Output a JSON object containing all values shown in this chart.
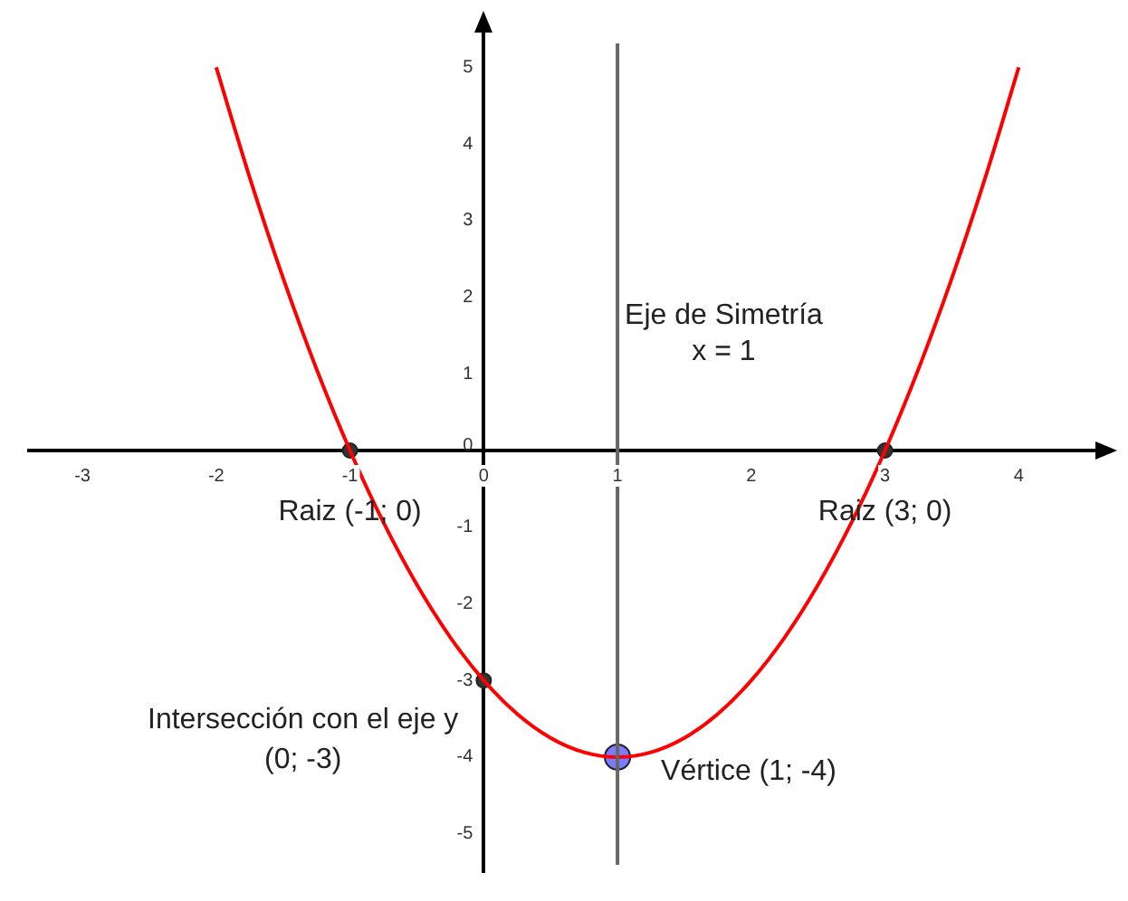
{
  "chart_data": {
    "type": "line",
    "xlim": [
      -3.4,
      4.6
    ],
    "ylim": [
      -5.5,
      5.5
    ],
    "xticks": [
      -3,
      -2,
      -1,
      0,
      1,
      2,
      3,
      4
    ],
    "yticks": [
      -5,
      -4,
      -3,
      -2,
      -1,
      0,
      1,
      2,
      3,
      4,
      5
    ],
    "legend": false,
    "marker": "none",
    "line_style": "solid",
    "series": [
      {
        "color": "#ff0000",
        "x": [
          -2,
          -1.75,
          -1.5,
          -1.25,
          -1,
          -0.75,
          -0.5,
          -0.25,
          0,
          0.25,
          0.5,
          0.75,
          1,
          1.25,
          1.5,
          1.75,
          2,
          2.25,
          2.5,
          2.75,
          3,
          3.25,
          3.5,
          3.75,
          4
        ],
        "values": [
          5,
          3.5625,
          2.25,
          1.0625,
          0,
          -0.9375,
          -1.75,
          -2.4375,
          -3,
          -3.4375,
          -3.75,
          -3.9375,
          -4,
          -3.9375,
          -3.75,
          -3.4375,
          -3,
          -2.4375,
          -1.75,
          -0.9375,
          0,
          1.0625,
          2.25,
          3.5625,
          5
        ]
      },
      {
        "type": "scatter",
        "color": "#333333",
        "marker": "circle",
        "x": [
          -1,
          3,
          0
        ],
        "values": [
          0,
          0,
          -3
        ]
      },
      {
        "type": "scatter",
        "color": "#7b7bff",
        "marker": "circle",
        "x": [
          1
        ],
        "values": [
          -4
        ]
      }
    ],
    "ref_lines": [
      {
        "axis": "x",
        "value": 1,
        "label": "Eje de Simetría\nx = 1",
        "color": "#666666"
      }
    ],
    "annotations": [
      {
        "text": "Raiz (-1; 0)",
        "x": -1,
        "y": 0
      },
      {
        "text": "Raiz (3; 0)",
        "x": 3,
        "y": 0
      },
      {
        "text": "Intersección con el eje y\n(0; -3)",
        "x": 0,
        "y": -3
      },
      {
        "text": "Vértice (1; -4)",
        "x": 1,
        "y": -4
      }
    ]
  }
}
